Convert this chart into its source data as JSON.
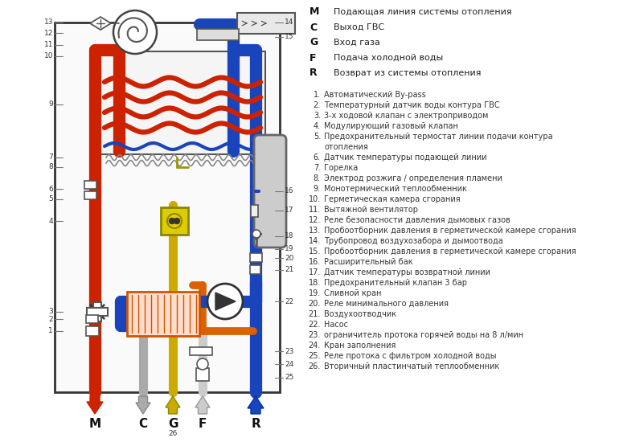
{
  "bg_color": "#ffffff",
  "legend_letters": [
    [
      "M",
      "Подающая линия системы отопления"
    ],
    [
      "C",
      "Выход ГВС"
    ],
    [
      "G",
      "Вход газа"
    ],
    [
      "F",
      "Подача холодной воды"
    ],
    [
      "R",
      "Возврат из системы отопления"
    ]
  ],
  "numbered_items": [
    [
      1,
      "Автоматический By-pass"
    ],
    [
      2,
      "Температурный датчик воды контура ГВС"
    ],
    [
      3,
      "3-х ходовой клапан с электроприводом"
    ],
    [
      4,
      "Модулирующий газовый клапан"
    ],
    [
      5,
      "Предохранительный термостат линии подачи контура"
    ],
    [
      5,
      "отопления"
    ],
    [
      6,
      "Датчик температуры подающей линии"
    ],
    [
      7,
      "Горелка"
    ],
    [
      8,
      "Электрод розжига / определения пламени"
    ],
    [
      9,
      "Монотермический теплообменник"
    ],
    [
      10,
      "Герметическая камера сгорания"
    ],
    [
      11,
      "Вытяжной вентилятор"
    ],
    [
      12,
      "Реле безопасности давления дымовых газов"
    ],
    [
      13,
      "Пробоотборник давления в герметической камере сгорания"
    ],
    [
      14,
      "Трубопровод воздухозабора и дымоотвода"
    ],
    [
      15,
      "Пробоотборник давления в герметической камере сгорания"
    ],
    [
      16,
      "Расширительный бак"
    ],
    [
      17,
      "Датчик температуры возвратной линии"
    ],
    [
      18,
      "Предохранительный клапан 3 бар"
    ],
    [
      19,
      "Сливной кран"
    ],
    [
      20,
      "Реле минимального давления"
    ],
    [
      21,
      "Воздухоотводчик"
    ],
    [
      22,
      "Насос"
    ],
    [
      23,
      "ограничитель протока горячей воды на 8 л/мин"
    ],
    [
      24,
      "Кран заполнения"
    ],
    [
      25,
      "Реле протока с фильтром холодной воды"
    ],
    [
      26,
      "Вторичный пластинчатый теплообменник"
    ]
  ],
  "colors": {
    "red": "#cc2200",
    "blue": "#1a44bb",
    "yellow": "#ccaa00",
    "gray_dn": "#aaaaaa",
    "gray_up": "#cccccc",
    "orange": "#dd6000",
    "outline": "#444444",
    "light_gray": "#bbbbbb",
    "mid_gray": "#888888"
  }
}
